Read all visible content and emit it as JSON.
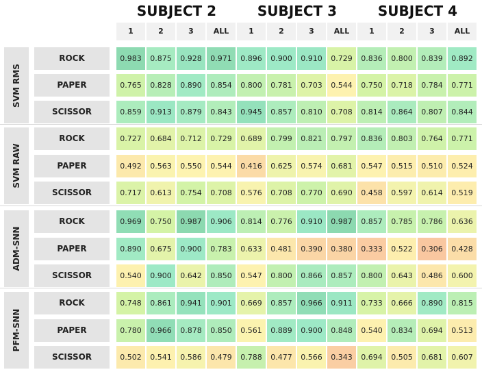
{
  "chart_data": {
    "type": "heatmap",
    "subjects": [
      "SUBJECT 2",
      "SUBJECT 3",
      "SUBJECT 4"
    ],
    "columns": [
      "1",
      "2",
      "3",
      "ALL"
    ],
    "groups": [
      {
        "name": "SVM RMS",
        "rows": [
          {
            "label": "ROCK",
            "values": [
              "0.983",
              "0.875",
              "0.928",
              "0.971",
              "0.896",
              "0.900",
              "0.910",
              "0.729",
              "0.836",
              "0.800",
              "0.839",
              "0.892"
            ]
          },
          {
            "label": "PAPER",
            "values": [
              "0.765",
              "0.828",
              "0.890",
              "0.854",
              "0.800",
              "0.781",
              "0.703",
              "0.544",
              "0.750",
              "0.718",
              "0.784",
              "0.771"
            ]
          },
          {
            "label": "SCISSOR",
            "values": [
              "0.859",
              "0.913",
              "0.879",
              "0.843",
              "0.945",
              "0.857",
              "0.810",
              "0.708",
              "0.814",
              "0.864",
              "0.807",
              "0.844"
            ]
          }
        ]
      },
      {
        "name": "SVM RAW",
        "rows": [
          {
            "label": "ROCK",
            "values": [
              "0.727",
              "0.684",
              "0.712",
              "0.729",
              "0.689",
              "0.799",
              "0.821",
              "0.797",
              "0.836",
              "0.803",
              "0.764",
              "0.771"
            ]
          },
          {
            "label": "PAPER",
            "values": [
              "0.492",
              "0.563",
              "0.550",
              "0.544",
              "0.416",
              "0.625",
              "0.574",
              "0.681",
              "0.547",
              "0.515",
              "0.510",
              "0.524"
            ]
          },
          {
            "label": "SCISSOR",
            "values": [
              "0.717",
              "0.613",
              "0.754",
              "0.708",
              "0.576",
              "0.708",
              "0.770",
              "0.690",
              "0.458",
              "0.597",
              "0.614",
              "0.519"
            ]
          }
        ]
      },
      {
        "name": "ADM-SNN",
        "rows": [
          {
            "label": "ROCK",
            "values": [
              "0.969",
              "0.750",
              "0.987",
              "0.906",
              "0.814",
              "0.776",
              "0.910",
              "0.987",
              "0.857",
              "0.785",
              "0.786",
              "0.636"
            ]
          },
          {
            "label": "PAPER",
            "values": [
              "0.890",
              "0.675",
              "0.900",
              "0.783",
              "0.633",
              "0.481",
              "0.390",
              "0.380",
              "0.333",
              "0.522",
              "0.306",
              "0.428"
            ]
          },
          {
            "label": "SCISSOR",
            "values": [
              "0.540",
              "0.900",
              "0.642",
              "0.850",
              "0.547",
              "0.800",
              "0.866",
              "0.857",
              "0.800",
              "0.643",
              "0.486",
              "0.600"
            ]
          }
        ]
      },
      {
        "name": "PFM-SNN",
        "rows": [
          {
            "label": "ROCK",
            "values": [
              "0.748",
              "0.861",
              "0.941",
              "0.901",
              "0.669",
              "0.857",
              "0.966",
              "0.911",
              "0.733",
              "0.666",
              "0.890",
              "0.815"
            ]
          },
          {
            "label": "PAPER",
            "values": [
              "0.780",
              "0.966",
              "0.878",
              "0.850",
              "0.561",
              "0.889",
              "0.900",
              "0.848",
              "0.540",
              "0.834",
              "0.694",
              "0.513"
            ]
          },
          {
            "label": "SCISSOR",
            "values": [
              "0.502",
              "0.541",
              "0.586",
              "0.479",
              "0.788",
              "0.477",
              "0.566",
              "0.343",
              "0.694",
              "0.505",
              "0.681",
              "0.607"
            ]
          }
        ]
      }
    ],
    "colors": {
      "stops": [
        "#f9c6a0",
        "#fdf3b0",
        "#d4f3a6",
        "#9de9c6",
        "#8ad7ad"
      ],
      "header_bg": "#f1f1f1",
      "label_bg": "#e4e4e4"
    }
  }
}
